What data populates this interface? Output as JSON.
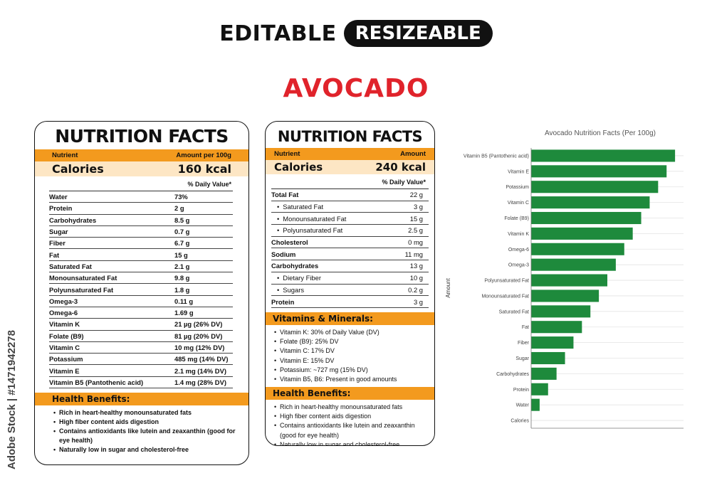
{
  "header": {
    "editable": "EDITABLE",
    "resizeable": "RESIZEABLE"
  },
  "product": "AVOCADO",
  "watermark": "Adobe Stock | #1471942278",
  "card1": {
    "title": "NUTRITION FACTS",
    "col_nutrient": "Nutrient",
    "col_amount": "Amount per 100g",
    "calories_label": "Calories",
    "calories_value": "160 kcal",
    "dv_head": "% Daily Value*",
    "rows": [
      {
        "n": "Water",
        "v": "73%"
      },
      {
        "n": "Protein",
        "v": "2 g"
      },
      {
        "n": "Carbohydrates",
        "v": "8.5 g"
      },
      {
        "n": "Sugar",
        "v": "0.7 g"
      },
      {
        "n": "Fiber",
        "v": "6.7 g"
      },
      {
        "n": "Fat",
        "v": "15 g"
      },
      {
        "n": "Saturated Fat",
        "v": "2.1 g"
      },
      {
        "n": "Monounsaturated Fat",
        "v": "9.8 g"
      },
      {
        "n": "Polyunsaturated Fat",
        "v": "1.8 g"
      },
      {
        "n": "Omega-3",
        "v": "0.11 g"
      },
      {
        "n": "Omega-6",
        "v": "1.69 g"
      },
      {
        "n": "Vitamin K",
        "v": "21 µg (26% DV)"
      },
      {
        "n": "Folate (B9)",
        "v": "81 µg (20% DV)"
      },
      {
        "n": "Vitamin C",
        "v": "10 mg (12% DV)"
      },
      {
        "n": "Potassium",
        "v": "485 mg (14% DV)"
      },
      {
        "n": "Vitamin E",
        "v": "2.1 mg (14% DV)"
      },
      {
        "n": "Vitamin B5 (Pantothenic acid)",
        "v": "1.4 mg (28% DV)"
      }
    ],
    "health_title": "Health Benefits:",
    "health": [
      "Rich in heart-healthy monounsaturated fats",
      "High fiber content aids digestion",
      "Contains antioxidants like lutein and zeaxanthin (good for eye health)",
      "Naturally low in sugar and cholesterol-free"
    ]
  },
  "card2": {
    "title": "NUTRITION FACTS",
    "col_nutrient": "Nutrient",
    "col_amount": "Amount",
    "calories_label": "Calories",
    "calories_value": "240 kcal",
    "dv_head": "% Daily Value*",
    "rows": [
      {
        "n": "Total Fat",
        "v": "22 g",
        "t": "bold"
      },
      {
        "n": "Saturated Fat",
        "v": "3 g",
        "t": "sub"
      },
      {
        "n": "Monounsaturated Fat",
        "v": "15 g",
        "t": "sub"
      },
      {
        "n": "Polyunsaturated Fat",
        "v": "2.5 g",
        "t": "sub"
      },
      {
        "n": "Cholesterol",
        "v": "0 mg",
        "t": "bold"
      },
      {
        "n": "Sodium",
        "v": "11 mg",
        "t": "bold"
      },
      {
        "n": "Carbohydrates",
        "v": "13 g",
        "t": "bold"
      },
      {
        "n": "Dietary Fiber",
        "v": "10 g",
        "t": "sub"
      },
      {
        "n": "Sugars",
        "v": "0.2 g",
        "t": "sub"
      },
      {
        "n": "Protein",
        "v": "3 g",
        "t": "bold"
      }
    ],
    "vitamins_title": "Vitamins & Minerals:",
    "vitamins": [
      "Vitamin K: 30% of Daily Value (DV)",
      "Folate (B9): 25% DV",
      "Vitamin C: 17% DV",
      "Vitamin E: 15% DV",
      "Potassium: ~727 mg (15% DV)",
      "Vitamin B5, B6: Present in good amounts"
    ],
    "health_title": "Health Benefits:",
    "health": [
      "Rich in heart-healthy monounsaturated fats",
      "High fiber content aids digestion",
      "Contains antioxidants like lutein and zeaxanthin (good for eye health)",
      "Naturally low in sugar and cholesterol-free"
    ]
  },
  "chart_data": {
    "type": "bar",
    "orientation": "horizontal",
    "title": "Avocado Nutrition Facts (Per 100g)",
    "xlabel": "",
    "ylabel": "Amount",
    "bar_color": "#1e8a3c",
    "grid": true,
    "categories": [
      "Vitamin B5 (Pantothenic acid)",
      "Vitamin E",
      "Potassium",
      "Vitamin C",
      "Folate (B9)",
      "Vitamin K",
      "Omega-6",
      "Omega-3",
      "Polyunsaturated Fat",
      "Monounsaturated Fat",
      "Saturated Fat",
      "Fat",
      "Fiber",
      "Sugar",
      "Carbohydrates",
      "Protein",
      "Water",
      "Calories"
    ],
    "values": [
      17,
      16,
      15,
      14,
      13,
      12,
      11,
      10,
      9,
      8,
      7,
      6,
      5,
      4,
      3,
      2,
      1,
      0
    ],
    "xlim": [
      0,
      18
    ]
  }
}
